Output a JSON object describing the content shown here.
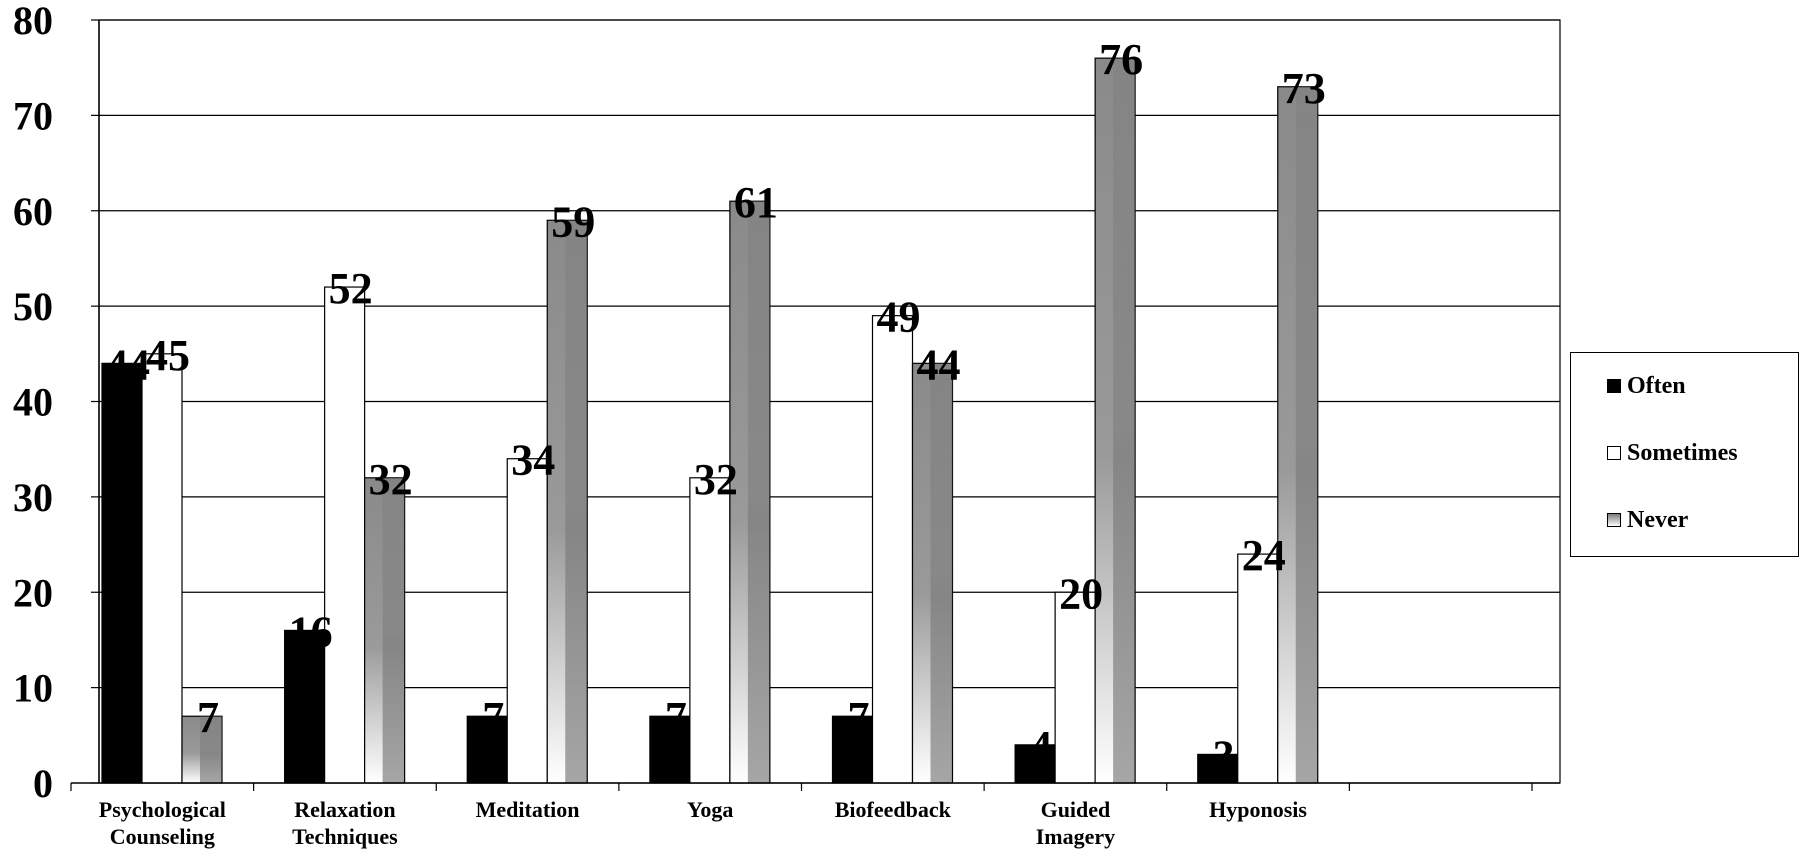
{
  "chart_data": {
    "type": "bar",
    "categories": [
      "Psychological Counseling",
      "Relaxation Techniques",
      "Meditation",
      "Yoga",
      "Biofeedback",
      "Guided Imagery",
      "Hyponosis"
    ],
    "category_lines": [
      [
        "Psychological",
        "Counseling"
      ],
      [
        "Relaxation",
        "Techniques"
      ],
      [
        "Meditation"
      ],
      [
        "Yoga"
      ],
      [
        "Biofeedback"
      ],
      [
        "Guided",
        "Imagery"
      ],
      [
        "Hyponosis"
      ]
    ],
    "series": [
      {
        "name": "Often",
        "values": [
          44,
          16,
          7,
          7,
          7,
          4,
          3
        ],
        "color": "#000000"
      },
      {
        "name": "Sometimes",
        "values": [
          45,
          52,
          34,
          32,
          49,
          20,
          24
        ],
        "color": "#ffffff"
      },
      {
        "name": "Never",
        "values": [
          7,
          32,
          59,
          61,
          44,
          76,
          73
        ],
        "color": "#808080"
      }
    ],
    "y_ticks": [
      "0",
      "10",
      "20",
      "30",
      "40",
      "50",
      "60",
      "70",
      "80"
    ],
    "ylim": [
      0,
      80
    ],
    "grid": true,
    "legend_position": "right"
  }
}
